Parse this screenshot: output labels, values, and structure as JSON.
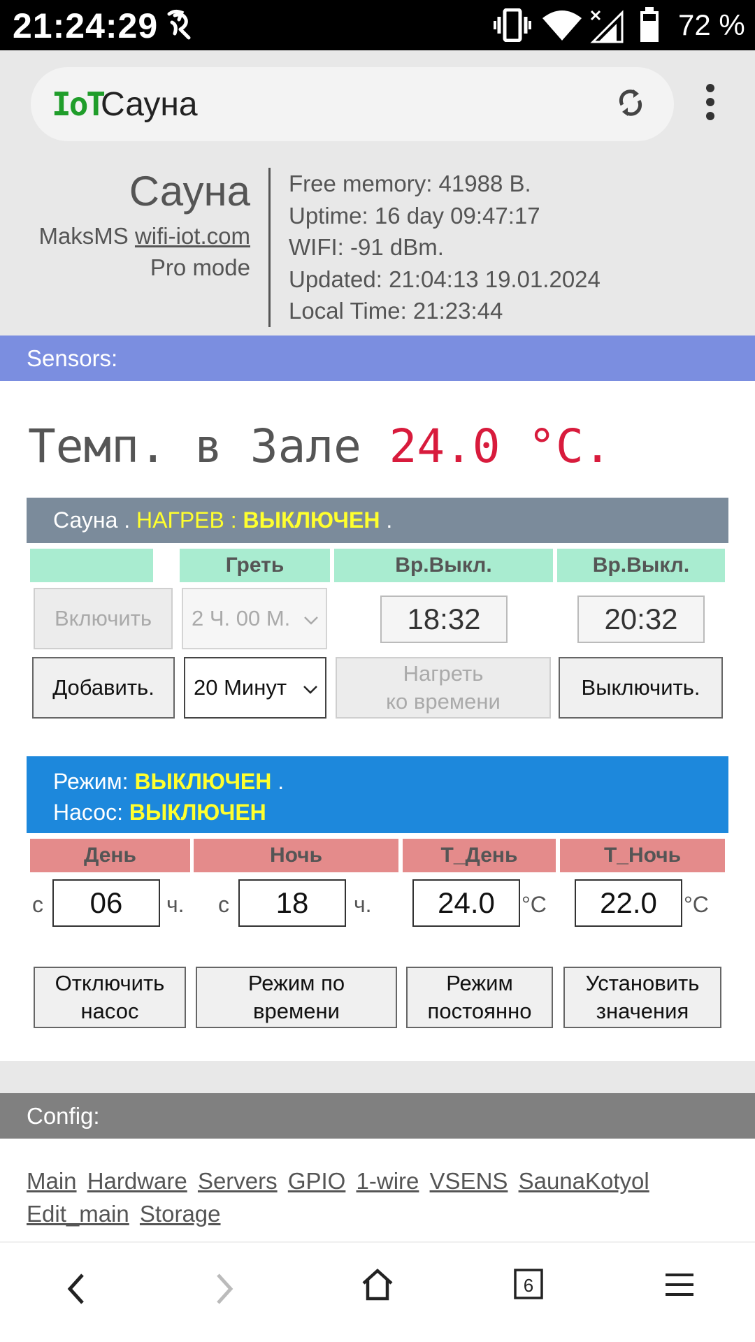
{
  "status_bar": {
    "time": "21:24:29",
    "battery_percent": "72 %",
    "icons": [
      "app-notification-icon",
      "vibrate-icon",
      "wifi-icon",
      "cell-signal-icon",
      "battery-icon"
    ]
  },
  "browser": {
    "logo": "IoT",
    "title": "Сауна",
    "icons": [
      "reload-icon",
      "more-vert-icon"
    ]
  },
  "header": {
    "device_title": "Сауна",
    "author": "MaksMS",
    "author_link": "wifi-iot.com",
    "mode": "Pro mode",
    "info": {
      "free_memory": "Free memory: 41988 B.",
      "uptime": "Uptime: 16 day 09:47:17",
      "wifi": "WIFI: -91 dBm.",
      "updated": "Updated: 21:04:13 19.01.2024",
      "local_time": "Local Time: 21:23:44"
    }
  },
  "sensors": {
    "section_label": "Sensors:",
    "temp_label": "Темп. в Зале",
    "temp_value": "24.0 °C."
  },
  "sauna": {
    "name": "Сауна . ",
    "heat_label": "НАГРЕВ : ",
    "heat_state": "ВЫКЛЮЧЕН",
    "heat_suffix": " .",
    "col_headers": [
      "",
      "Греть",
      "Вр.Выкл.",
      "Вр.Выкл."
    ],
    "enable_button": "Включить",
    "duration_select": "2 Ч. 00 М.",
    "off_time_1": "18:32",
    "off_time_2": "20:32",
    "add_button": "Добавить.",
    "add_select": "20 Минут",
    "heat_to_time_line1": "Нагреть",
    "heat_to_time_line2": "ко времени",
    "turn_off_button": "Выключить."
  },
  "mode": {
    "mode_label": "Режим: ",
    "mode_state": "ВЫКЛЮЧЕН",
    "mode_suffix": " .",
    "pump_label": "Насос: ",
    "pump_state": "ВЫКЛЮЧЕН",
    "col_headers": [
      "День",
      "Ночь",
      "T_День",
      "T_Ночь"
    ],
    "from_label": "с",
    "hours_label": "ч.",
    "celsius_label": "°C",
    "day_hour": "06",
    "night_hour": "18",
    "t_day": "24.0",
    "t_night": "22.0",
    "btn_pump_off_l1": "Отключить",
    "btn_pump_off_l2": "насос",
    "btn_time_mode_l1": "Режим по",
    "btn_time_mode_l2": "времени",
    "btn_const_mode_l1": "Режим",
    "btn_const_mode_l2": "постоянно",
    "btn_set_l1": "Установить",
    "btn_set_l2": "значения"
  },
  "config": {
    "section_label": "Config:",
    "links": [
      "Main",
      "Hardware",
      "Servers",
      "GPIO",
      "1-wire",
      "VSENS",
      "SaunaKotyol",
      "Edit_main",
      "Storage"
    ]
  },
  "bottom_nav": {
    "tab_count": "6",
    "icons": [
      "back-arrow-icon",
      "forward-arrow-icon",
      "home-icon",
      "tabs-icon",
      "menu-icon"
    ]
  },
  "colors": {
    "sensors_bar": "#7b8ee0",
    "sauna_header": "#7b8b9b",
    "mode_header": "#1d88dc",
    "config_bar": "#808080",
    "highlight_yellow": "#ffff2e",
    "temp_red": "#d81b3c",
    "green_header": "#a9ecd0",
    "red_header": "#e48b8b",
    "logo_green": "#1f9d2a"
  }
}
